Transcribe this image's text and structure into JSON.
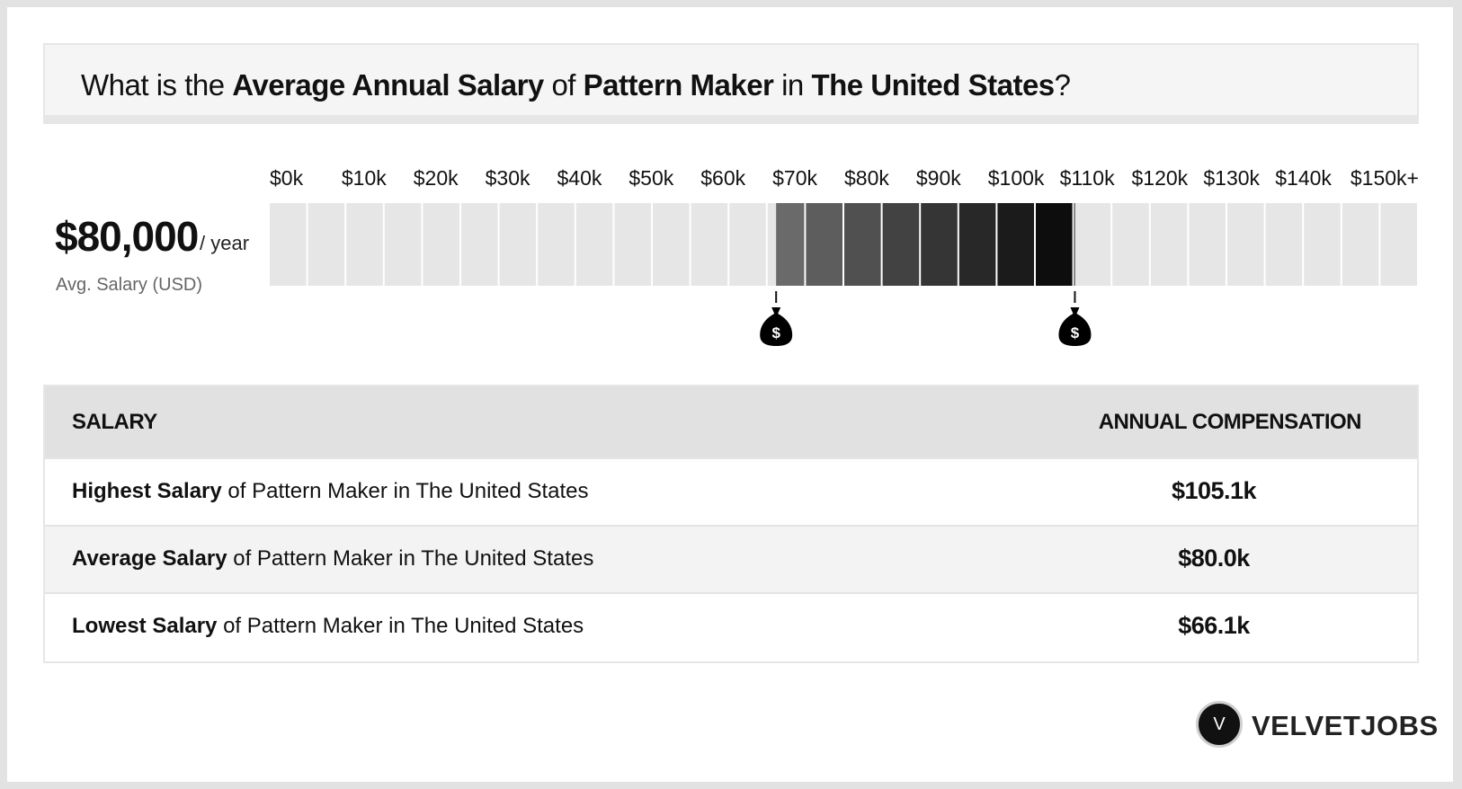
{
  "question": {
    "p1": "What is the ",
    "b1": "Average Annual Salary",
    "p2": " of ",
    "b2": "Pattern Maker",
    "p3": " in ",
    "b3": "The United States",
    "p4": "?"
  },
  "summary": {
    "amount": "$80,000",
    "period": "/ year",
    "label": "Avg. Salary (USD)"
  },
  "chart_data": {
    "type": "bar",
    "x_ticks": [
      "$0k",
      "$10k",
      "$20k",
      "$30k",
      "$40k",
      "$50k",
      "$60k",
      "$70k",
      "$80k",
      "$90k",
      "$100k",
      "$110k",
      "$120k",
      "$130k",
      "$140k",
      "$150k+"
    ],
    "x_range": [
      0,
      150
    ],
    "unit": "k USD",
    "low": 66.1,
    "average": 80.0,
    "high": 105.1,
    "marker_symbol": "$",
    "colors": {
      "empty": "#e6e6e6",
      "range_start": "#6a6a6a",
      "range_end": "#000000"
    }
  },
  "table": {
    "header_left": "SALARY",
    "header_right": "ANNUAL COMPENSATION",
    "rows": [
      {
        "bold": "Highest Salary",
        "rest": " of Pattern Maker in The United States",
        "value": "$105.1k"
      },
      {
        "bold": "Average Salary",
        "rest": " of Pattern Maker in The United States",
        "value": "$80.0k"
      },
      {
        "bold": "Lowest Salary",
        "rest": " of Pattern Maker in The United States",
        "value": "$66.1k"
      }
    ]
  },
  "brand": {
    "initial": "V",
    "name": "VELVETJOBS"
  }
}
